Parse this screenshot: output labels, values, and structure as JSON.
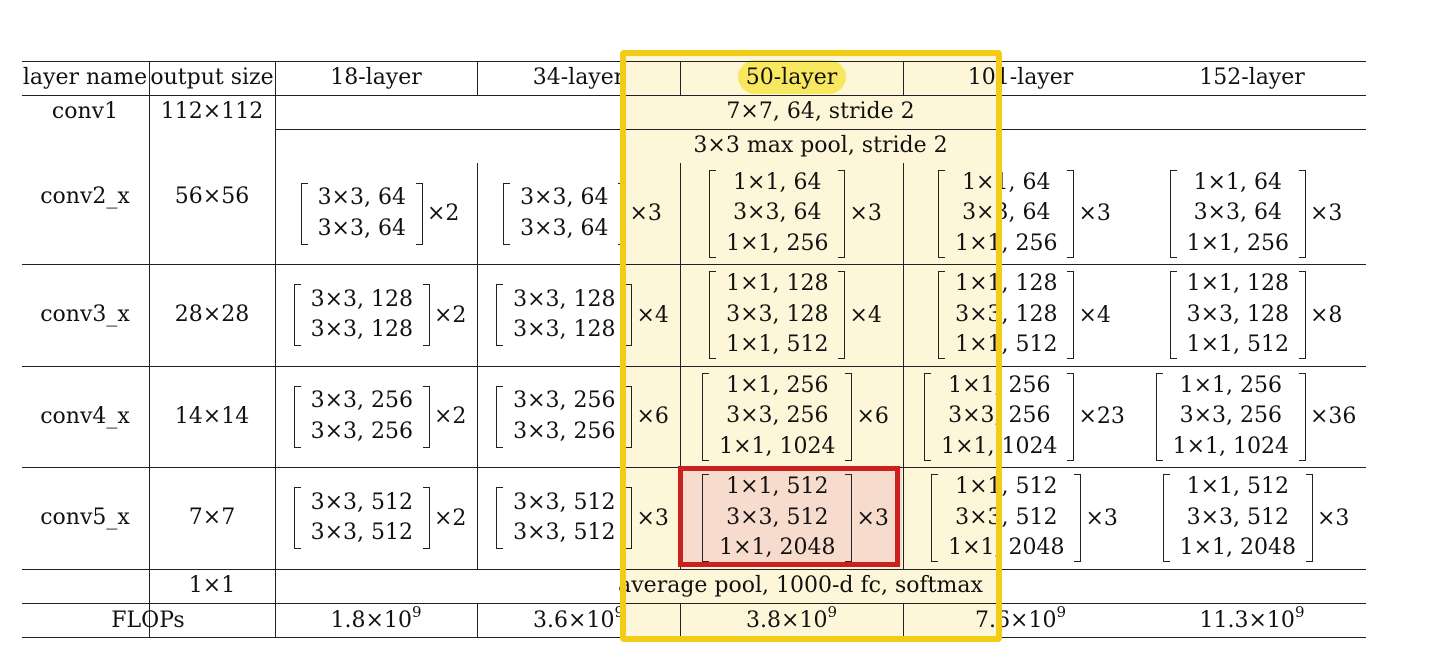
{
  "table": {
    "headers": [
      "layer name",
      "output size",
      "18-layer",
      "34-layer",
      "50-layer",
      "101-layer",
      "152-layer"
    ],
    "conv1": {
      "name": "conv1",
      "size": "112×112",
      "spec": "7×7, 64, stride 2"
    },
    "maxpool": "3×3 max pool, stride 2",
    "stages": [
      {
        "name": "conv2_x",
        "size": "56×56",
        "blocks": [
          {
            "lines": [
              "3×3, 64",
              "3×3, 64"
            ],
            "mult": "×2"
          },
          {
            "lines": [
              "3×3, 64",
              "3×3, 64"
            ],
            "mult": "×3"
          },
          {
            "lines": [
              "1×1, 64",
              "3×3, 64",
              "1×1, 256"
            ],
            "mult": "×3"
          },
          {
            "lines": [
              "1×1, 64",
              "3×3, 64",
              "1×1, 256"
            ],
            "mult": "×3"
          },
          {
            "lines": [
              "1×1, 64",
              "3×3, 64",
              "1×1, 256"
            ],
            "mult": "×3"
          }
        ]
      },
      {
        "name": "conv3_x",
        "size": "28×28",
        "blocks": [
          {
            "lines": [
              "3×3, 128",
              "3×3, 128"
            ],
            "mult": "×2"
          },
          {
            "lines": [
              "3×3, 128",
              "3×3, 128"
            ],
            "mult": "×4"
          },
          {
            "lines": [
              "1×1, 128",
              "3×3, 128",
              "1×1, 512"
            ],
            "mult": "×4"
          },
          {
            "lines": [
              "1×1, 128",
              "3×3, 128",
              "1×1, 512"
            ],
            "mult": "×4"
          },
          {
            "lines": [
              "1×1, 128",
              "3×3, 128",
              "1×1, 512"
            ],
            "mult": "×8"
          }
        ]
      },
      {
        "name": "conv4_x",
        "size": "14×14",
        "blocks": [
          {
            "lines": [
              "3×3, 256",
              "3×3, 256"
            ],
            "mult": "×2"
          },
          {
            "lines": [
              "3×3, 256",
              "3×3, 256"
            ],
            "mult": "×6"
          },
          {
            "lines": [
              "1×1, 256",
              "3×3, 256",
              "1×1, 1024"
            ],
            "mult": "×6"
          },
          {
            "lines": [
              "1×1, 256",
              "3×3, 256",
              "1×1, 1024"
            ],
            "mult": "×23"
          },
          {
            "lines": [
              "1×1, 256",
              "3×3, 256",
              "1×1, 1024"
            ],
            "mult": "×36"
          }
        ]
      },
      {
        "name": "conv5_x",
        "size": "7×7",
        "blocks": [
          {
            "lines": [
              "3×3, 512",
              "3×3, 512"
            ],
            "mult": "×2"
          },
          {
            "lines": [
              "3×3, 512",
              "3×3, 512"
            ],
            "mult": "×3"
          },
          {
            "lines": [
              "1×1, 512",
              "3×3, 512",
              "1×1, 2048"
            ],
            "mult": "×3"
          },
          {
            "lines": [
              "1×1, 512",
              "3×3, 512",
              "1×1, 2048"
            ],
            "mult": "×3"
          },
          {
            "lines": [
              "1×1, 512",
              "3×3, 512",
              "1×1, 2048"
            ],
            "mult": "×3"
          }
        ]
      }
    ],
    "final": {
      "size": "1×1",
      "spec": "average pool, 1000-d fc, softmax"
    },
    "flops": {
      "label": "FLOPs",
      "base": "×10",
      "exp": "9",
      "values": [
        "1.8",
        "3.6",
        "3.8",
        "7.6",
        "11.3"
      ]
    }
  },
  "highlight_colors": {
    "column_box": "#f4cc18",
    "column_fill": "#fdf6d8",
    "header_oval": "#f8e860",
    "cell_box": "#cc1f1f",
    "cell_fill": "#f7dccd"
  }
}
